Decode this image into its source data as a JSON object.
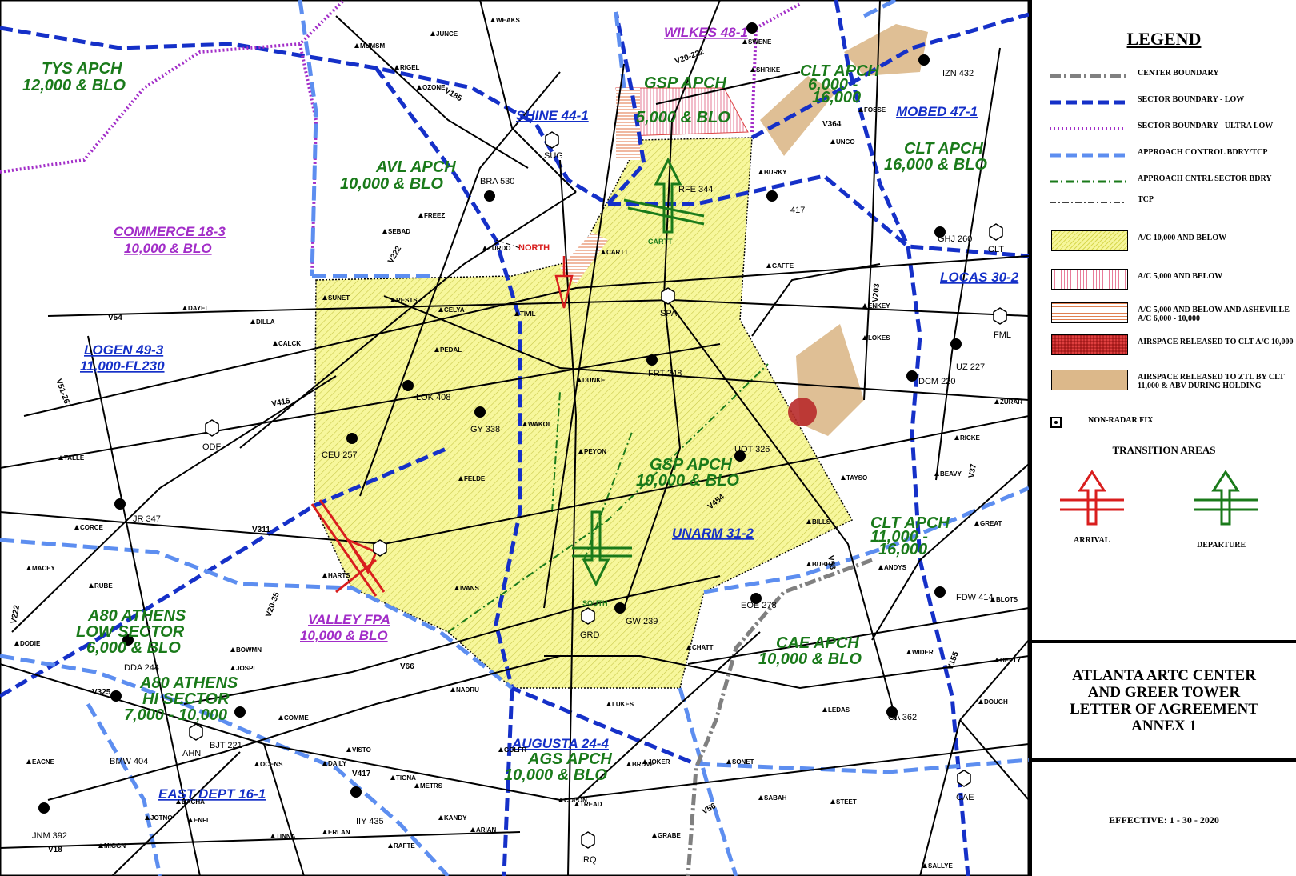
{
  "sectors": {
    "wilkes": "WILKES 48-1",
    "shine": "SHINE 44-1",
    "mobed": "MOBED 47-1",
    "commerce_1": "COMMERCE 18-3",
    "commerce_2": "10,000 & BLO",
    "logen_1": "LOGEN 49-3",
    "logen_2": "11,000-FL230",
    "locas": "LOCAS 30-2",
    "unarm": "UNARM 31-2",
    "valley_1": "VALLEY FPA",
    "valley_2": "10,000 & BLO",
    "augusta": "AUGUSTA 24-4",
    "east_dept": "EAST DEPT 16-1"
  },
  "approaches": {
    "tys_1": "TYS APCH",
    "tys_2": "12,000 & BLO",
    "avl_1": "AVL APCH",
    "avl_2": "10,000 & BLO",
    "gspn_1": "GSP APCH",
    "gspn_2": "5,000 & BLO",
    "clt_n_1": "CLT APCH",
    "clt_n_2": "6,000 -",
    "clt_n_3": "16,000",
    "clt_e_1": "CLT APCH",
    "clt_e_2": "16,000 & BLO",
    "gsp_1": "GSP APCH",
    "gsp_2": "10,000 & BLO",
    "clt_s_1": "CLT APCH",
    "clt_s_2": "11,000 -",
    "clt_s_3": "16,000",
    "cae_1": "CAE APCH",
    "cae_2": "10,000 & BLO",
    "a80low_1": "A80 ATHENS",
    "a80low_2": "LOW SECTOR",
    "a80low_3": "6,000 & BLO",
    "a80hi_1": "A80 ATHENS",
    "a80hi_2": "HI SECTOR",
    "a80hi_3": "7,000 - 10,000",
    "ags_1": "AGS APCH",
    "ags_2": "10,000 & BLO"
  },
  "navaids": {
    "sug": "SUG",
    "spa": "SPA",
    "odf": "ODF",
    "grd": "GRD",
    "cae": "CAE",
    "ahn": "AHN",
    "irq": "IRQ",
    "clt": "CLT",
    "fml": "FML",
    "rfe": "RFE 344",
    "ceu": "CEU 257",
    "lok": "LOK 408",
    "gy": "GY 338",
    "frt": "FRT 248",
    "uot": "UOT 326",
    "gw": "GW 239",
    "eoe": "EOE 278",
    "fdw": "FDW 414",
    "dcm": "DCM 220",
    "uz": "UZ 227",
    "ca": "CA 362",
    "bjt": "BJT 221",
    "bmw": "BMW 404",
    "dda": "DDA 244",
    "iiy": "IIY 435",
    "jnm": "JNM 392",
    "izn": "IZN 432",
    "ghj": "GHJ 260",
    "bra": "BRA 530",
    "jr": "JR 347",
    "ssv": "417"
  },
  "fixes": [
    "WEAKS",
    "JUNCE",
    "MUMSM",
    "RIGEL",
    "OZONE",
    "SWENE",
    "SHRIKE",
    "FOSSE",
    "UNCO",
    "BURKY",
    "GAFFE",
    "ENKEY",
    "LOKES",
    "ZURAR",
    "RICKE",
    "BEAVY",
    "GREAT",
    "TAYSO",
    "BILLS",
    "BUBBA",
    "ANDYS",
    "BLOTS",
    "HEFTY",
    "DOUGH",
    "WIDER",
    "LEDAS",
    "SONET",
    "SABAH",
    "STEET",
    "JOKER",
    "BRDVE",
    "COLON",
    "TREAD",
    "GRABE",
    "ARIAN",
    "RAFTE",
    "KANDY",
    "TIGNA",
    "METRS",
    "OCENS",
    "DAILY",
    "VISTO",
    "COMME",
    "BOWMN",
    "JOSPI",
    "MACEY",
    "RUBE",
    "DODIE",
    "TALLE",
    "CORCE",
    "SUNET",
    "RESTS",
    "CELYA",
    "TIVIL",
    "DAYEL",
    "DILLA",
    "CALCK",
    "PEDAL",
    "WAKOL",
    "PEYON",
    "DUNKE",
    "FELDE",
    "IVANS",
    "HARTS",
    "CARTT",
    "SEBAD",
    "FREEZ",
    "TURDO",
    "CHATT",
    "GOLFR",
    "LUKES",
    "NADRU",
    "EACNE",
    "JOTNO",
    "DACHA",
    "ENFI",
    "MIGGN",
    "TINNA",
    "ERLAN",
    "SALLYE"
  ],
  "airways": [
    "V185",
    "V364",
    "V20-222",
    "V222",
    "V54",
    "V415",
    "V311",
    "V20-35",
    "V66",
    "V325",
    "V417",
    "V454",
    "V53",
    "V155",
    "V56",
    "V37",
    "V203",
    "V51-267",
    "V222",
    "V18"
  ],
  "labels": {
    "north": "NORTH",
    "south": "SOUTH",
    "cartt": "CARTT"
  },
  "legend": {
    "title": "LEGEND",
    "lines": [
      "CENTER BOUNDARY",
      "SECTOR BOUNDARY - LOW",
      "SECTOR BOUNDARY - ULTRA LOW",
      "APPROACH CONTROL BDRY/TCP",
      "APPROACH CNTRL SECTOR BDRY",
      "TCP"
    ],
    "areas": [
      "A/C 10,000 AND BELOW",
      "A/C 5,000 AND BELOW",
      "A/C 5,000 AND BELOW AND ASHEVILLE A/C 6,000 - 10,000",
      "AIRSPACE RELEASED TO CLT A/C 10,000",
      "AIRSPACE RELEASED TO ZTL BY CLT 11,000 & ABV DURING HOLDING"
    ],
    "nonradar": "NON-RADAR FIX",
    "transition_title": "TRANSITION AREAS",
    "arrival": "ARRIVAL",
    "departure": "DEPARTURE"
  },
  "title": {
    "line1": "ATLANTA ARTC CENTER",
    "line2": "AND GREER TOWER",
    "line3": "LETTER OF AGREEMENT",
    "line4": "ANNEX 1"
  },
  "effective": "EFFECTIVE:  1 - 30 - 2020"
}
